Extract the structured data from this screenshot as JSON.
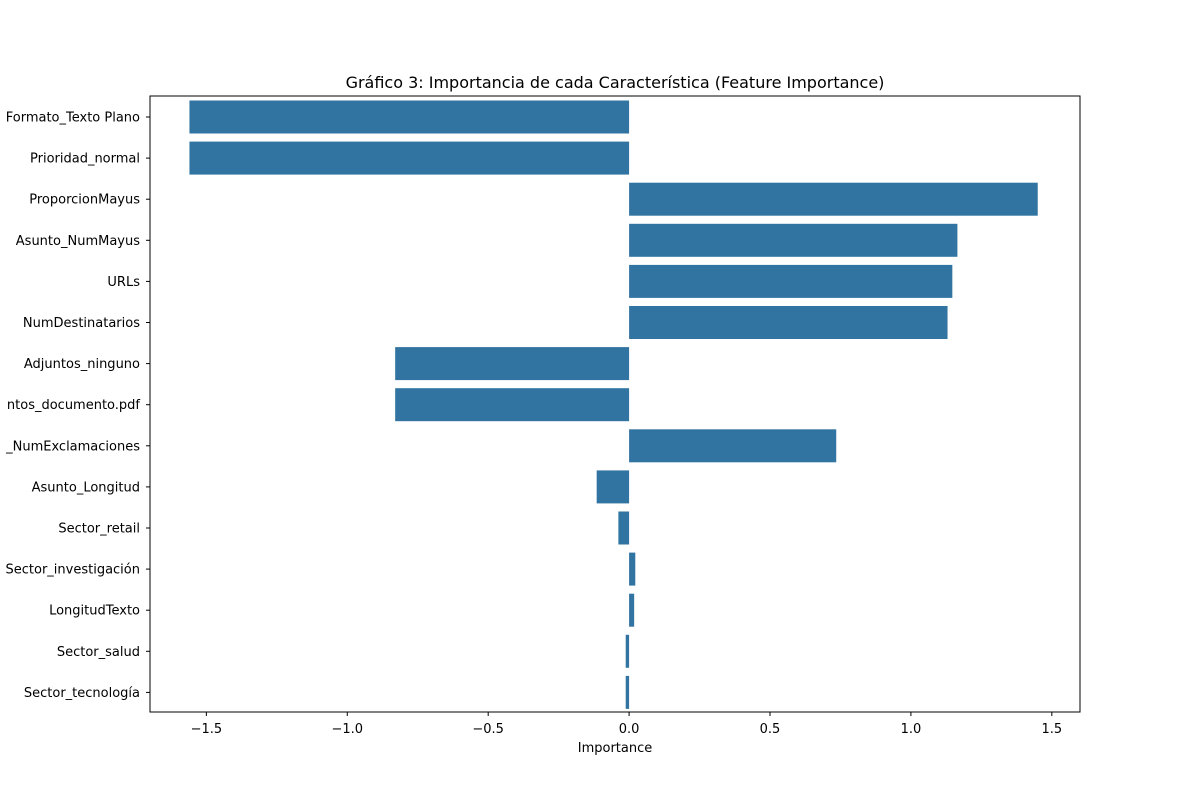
{
  "chart_data": {
    "type": "bar",
    "orientation": "horizontal",
    "title": "Gráfico 3: Importancia de cada Característica (Feature Importance)",
    "xlabel": "Importance",
    "ylabel": "",
    "xlim": [
      -1.7,
      1.6
    ],
    "xticks": [
      -1.5,
      -1.0,
      -0.5,
      0.0,
      0.5,
      1.0,
      1.5
    ],
    "xtick_labels": [
      "−1.5",
      "−1.0",
      "−0.5",
      "0.0",
      "0.5",
      "1.0",
      "1.5"
    ],
    "grid": false,
    "bar_color": "#3274a1",
    "categories": [
      "Formato_Texto Plano",
      "Prioridad_normal",
      "ProporcionMayus",
      "Asunto_NumMayus",
      "URLs",
      "NumDestinatarios",
      "Adjuntos_ninguno",
      "ntos_documento.pdf",
      "_NumExclamaciones",
      "Asunto_Longitud",
      "Sector_retail",
      "Sector_investigación",
      "LongitudTexto",
      "Sector_salud",
      "Sector_tecnología"
    ],
    "values": [
      -1.56,
      -1.56,
      1.45,
      1.165,
      1.147,
      1.13,
      -0.83,
      -0.83,
      0.735,
      -0.115,
      -0.038,
      0.022,
      0.018,
      -0.012,
      -0.012
    ]
  }
}
